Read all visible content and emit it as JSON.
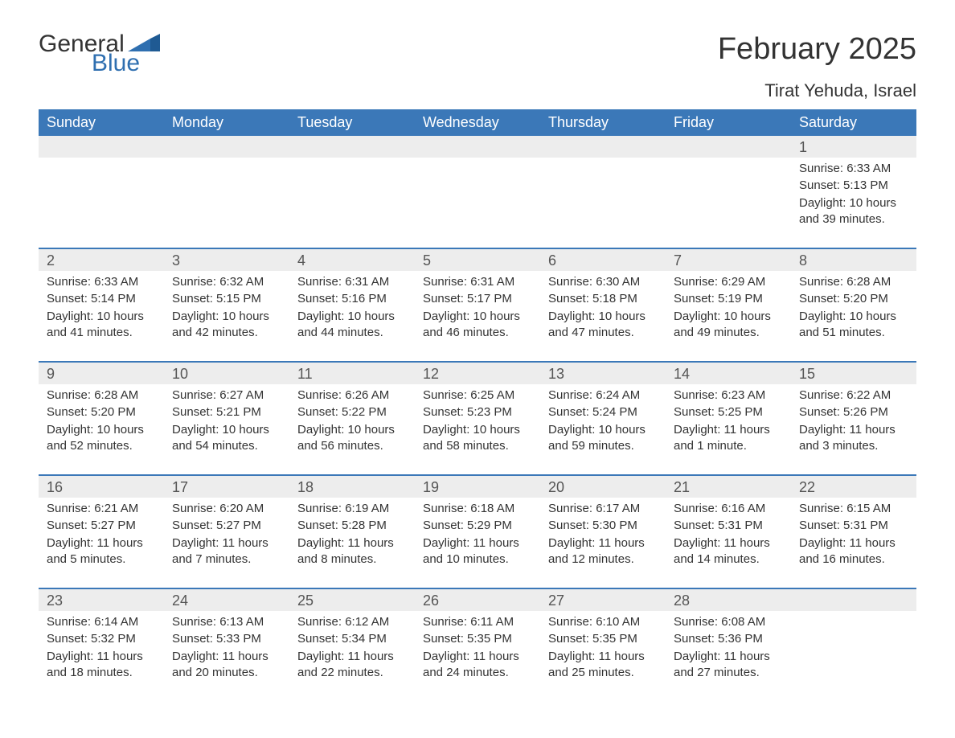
{
  "brand": {
    "word1": "General",
    "word2": "Blue",
    "flag_color": "#2f6fb0"
  },
  "title": "February 2025",
  "location": "Tirat Yehuda, Israel",
  "colors": {
    "header_bg": "#3b78b8",
    "header_text": "#ffffff",
    "daynum_bg": "#ededed",
    "text": "#333333",
    "border": "#3b78b8",
    "background": "#ffffff"
  },
  "typography": {
    "title_fontsize": 38,
    "location_fontsize": 22,
    "header_fontsize": 18,
    "daynum_fontsize": 18,
    "body_fontsize": 15
  },
  "day_headers": [
    "Sunday",
    "Monday",
    "Tuesday",
    "Wednesday",
    "Thursday",
    "Friday",
    "Saturday"
  ],
  "weeks": [
    [
      null,
      null,
      null,
      null,
      null,
      null,
      {
        "day": "1",
        "sunrise": "Sunrise: 6:33 AM",
        "sunset": "Sunset: 5:13 PM",
        "daylight": "Daylight: 10 hours and 39 minutes."
      }
    ],
    [
      {
        "day": "2",
        "sunrise": "Sunrise: 6:33 AM",
        "sunset": "Sunset: 5:14 PM",
        "daylight": "Daylight: 10 hours and 41 minutes."
      },
      {
        "day": "3",
        "sunrise": "Sunrise: 6:32 AM",
        "sunset": "Sunset: 5:15 PM",
        "daylight": "Daylight: 10 hours and 42 minutes."
      },
      {
        "day": "4",
        "sunrise": "Sunrise: 6:31 AM",
        "sunset": "Sunset: 5:16 PM",
        "daylight": "Daylight: 10 hours and 44 minutes."
      },
      {
        "day": "5",
        "sunrise": "Sunrise: 6:31 AM",
        "sunset": "Sunset: 5:17 PM",
        "daylight": "Daylight: 10 hours and 46 minutes."
      },
      {
        "day": "6",
        "sunrise": "Sunrise: 6:30 AM",
        "sunset": "Sunset: 5:18 PM",
        "daylight": "Daylight: 10 hours and 47 minutes."
      },
      {
        "day": "7",
        "sunrise": "Sunrise: 6:29 AM",
        "sunset": "Sunset: 5:19 PM",
        "daylight": "Daylight: 10 hours and 49 minutes."
      },
      {
        "day": "8",
        "sunrise": "Sunrise: 6:28 AM",
        "sunset": "Sunset: 5:20 PM",
        "daylight": "Daylight: 10 hours and 51 minutes."
      }
    ],
    [
      {
        "day": "9",
        "sunrise": "Sunrise: 6:28 AM",
        "sunset": "Sunset: 5:20 PM",
        "daylight": "Daylight: 10 hours and 52 minutes."
      },
      {
        "day": "10",
        "sunrise": "Sunrise: 6:27 AM",
        "sunset": "Sunset: 5:21 PM",
        "daylight": "Daylight: 10 hours and 54 minutes."
      },
      {
        "day": "11",
        "sunrise": "Sunrise: 6:26 AM",
        "sunset": "Sunset: 5:22 PM",
        "daylight": "Daylight: 10 hours and 56 minutes."
      },
      {
        "day": "12",
        "sunrise": "Sunrise: 6:25 AM",
        "sunset": "Sunset: 5:23 PM",
        "daylight": "Daylight: 10 hours and 58 minutes."
      },
      {
        "day": "13",
        "sunrise": "Sunrise: 6:24 AM",
        "sunset": "Sunset: 5:24 PM",
        "daylight": "Daylight: 10 hours and 59 minutes."
      },
      {
        "day": "14",
        "sunrise": "Sunrise: 6:23 AM",
        "sunset": "Sunset: 5:25 PM",
        "daylight": "Daylight: 11 hours and 1 minute."
      },
      {
        "day": "15",
        "sunrise": "Sunrise: 6:22 AM",
        "sunset": "Sunset: 5:26 PM",
        "daylight": "Daylight: 11 hours and 3 minutes."
      }
    ],
    [
      {
        "day": "16",
        "sunrise": "Sunrise: 6:21 AM",
        "sunset": "Sunset: 5:27 PM",
        "daylight": "Daylight: 11 hours and 5 minutes."
      },
      {
        "day": "17",
        "sunrise": "Sunrise: 6:20 AM",
        "sunset": "Sunset: 5:27 PM",
        "daylight": "Daylight: 11 hours and 7 minutes."
      },
      {
        "day": "18",
        "sunrise": "Sunrise: 6:19 AM",
        "sunset": "Sunset: 5:28 PM",
        "daylight": "Daylight: 11 hours and 8 minutes."
      },
      {
        "day": "19",
        "sunrise": "Sunrise: 6:18 AM",
        "sunset": "Sunset: 5:29 PM",
        "daylight": "Daylight: 11 hours and 10 minutes."
      },
      {
        "day": "20",
        "sunrise": "Sunrise: 6:17 AM",
        "sunset": "Sunset: 5:30 PM",
        "daylight": "Daylight: 11 hours and 12 minutes."
      },
      {
        "day": "21",
        "sunrise": "Sunrise: 6:16 AM",
        "sunset": "Sunset: 5:31 PM",
        "daylight": "Daylight: 11 hours and 14 minutes."
      },
      {
        "day": "22",
        "sunrise": "Sunrise: 6:15 AM",
        "sunset": "Sunset: 5:31 PM",
        "daylight": "Daylight: 11 hours and 16 minutes."
      }
    ],
    [
      {
        "day": "23",
        "sunrise": "Sunrise: 6:14 AM",
        "sunset": "Sunset: 5:32 PM",
        "daylight": "Daylight: 11 hours and 18 minutes."
      },
      {
        "day": "24",
        "sunrise": "Sunrise: 6:13 AM",
        "sunset": "Sunset: 5:33 PM",
        "daylight": "Daylight: 11 hours and 20 minutes."
      },
      {
        "day": "25",
        "sunrise": "Sunrise: 6:12 AM",
        "sunset": "Sunset: 5:34 PM",
        "daylight": "Daylight: 11 hours and 22 minutes."
      },
      {
        "day": "26",
        "sunrise": "Sunrise: 6:11 AM",
        "sunset": "Sunset: 5:35 PM",
        "daylight": "Daylight: 11 hours and 24 minutes."
      },
      {
        "day": "27",
        "sunrise": "Sunrise: 6:10 AM",
        "sunset": "Sunset: 5:35 PM",
        "daylight": "Daylight: 11 hours and 25 minutes."
      },
      {
        "day": "28",
        "sunrise": "Sunrise: 6:08 AM",
        "sunset": "Sunset: 5:36 PM",
        "daylight": "Daylight: 11 hours and 27 minutes."
      },
      null
    ]
  ]
}
